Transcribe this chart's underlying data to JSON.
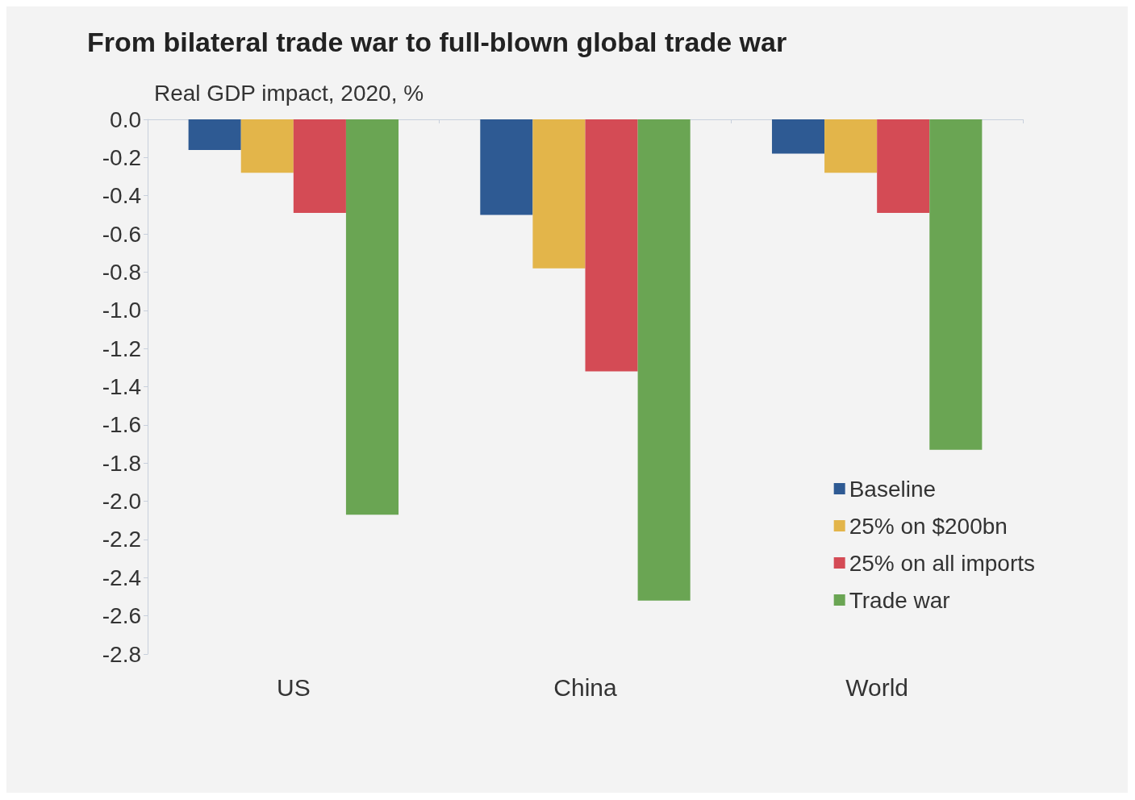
{
  "chart_data": {
    "type": "bar",
    "title": "From bilateral trade war to full-blown global trade war",
    "subtitle": "Real GDP impact, 2020, %",
    "categories": [
      "US",
      "China",
      "World"
    ],
    "series": [
      {
        "name": "Baseline",
        "color": "#2e5a93",
        "values": [
          -0.16,
          -0.5,
          -0.18
        ]
      },
      {
        "name": "25% on $200bn",
        "color": "#e3b54a",
        "values": [
          -0.28,
          -0.78,
          -0.28
        ]
      },
      {
        "name": "25% on all imports",
        "color": "#d44b55",
        "values": [
          -0.49,
          -1.32,
          -0.49
        ]
      },
      {
        "name": "Trade war",
        "color": "#6aa553",
        "values": [
          -2.07,
          -2.52,
          -1.73
        ]
      }
    ],
    "ylim": [
      -2.8,
      0
    ],
    "yticks": [
      {
        "value": 0,
        "label": "0.0"
      },
      -0.2,
      -0.4,
      -0.6,
      -0.8,
      {
        "value": -1,
        "label": "-1.0"
      },
      -1.2,
      -1.4,
      -1.6,
      -1.8,
      {
        "value": -2,
        "label": "-2.0"
      },
      -2.2,
      -2.4,
      -2.6,
      -2.8
    ],
    "grid": false,
    "legend": "bottom right"
  }
}
